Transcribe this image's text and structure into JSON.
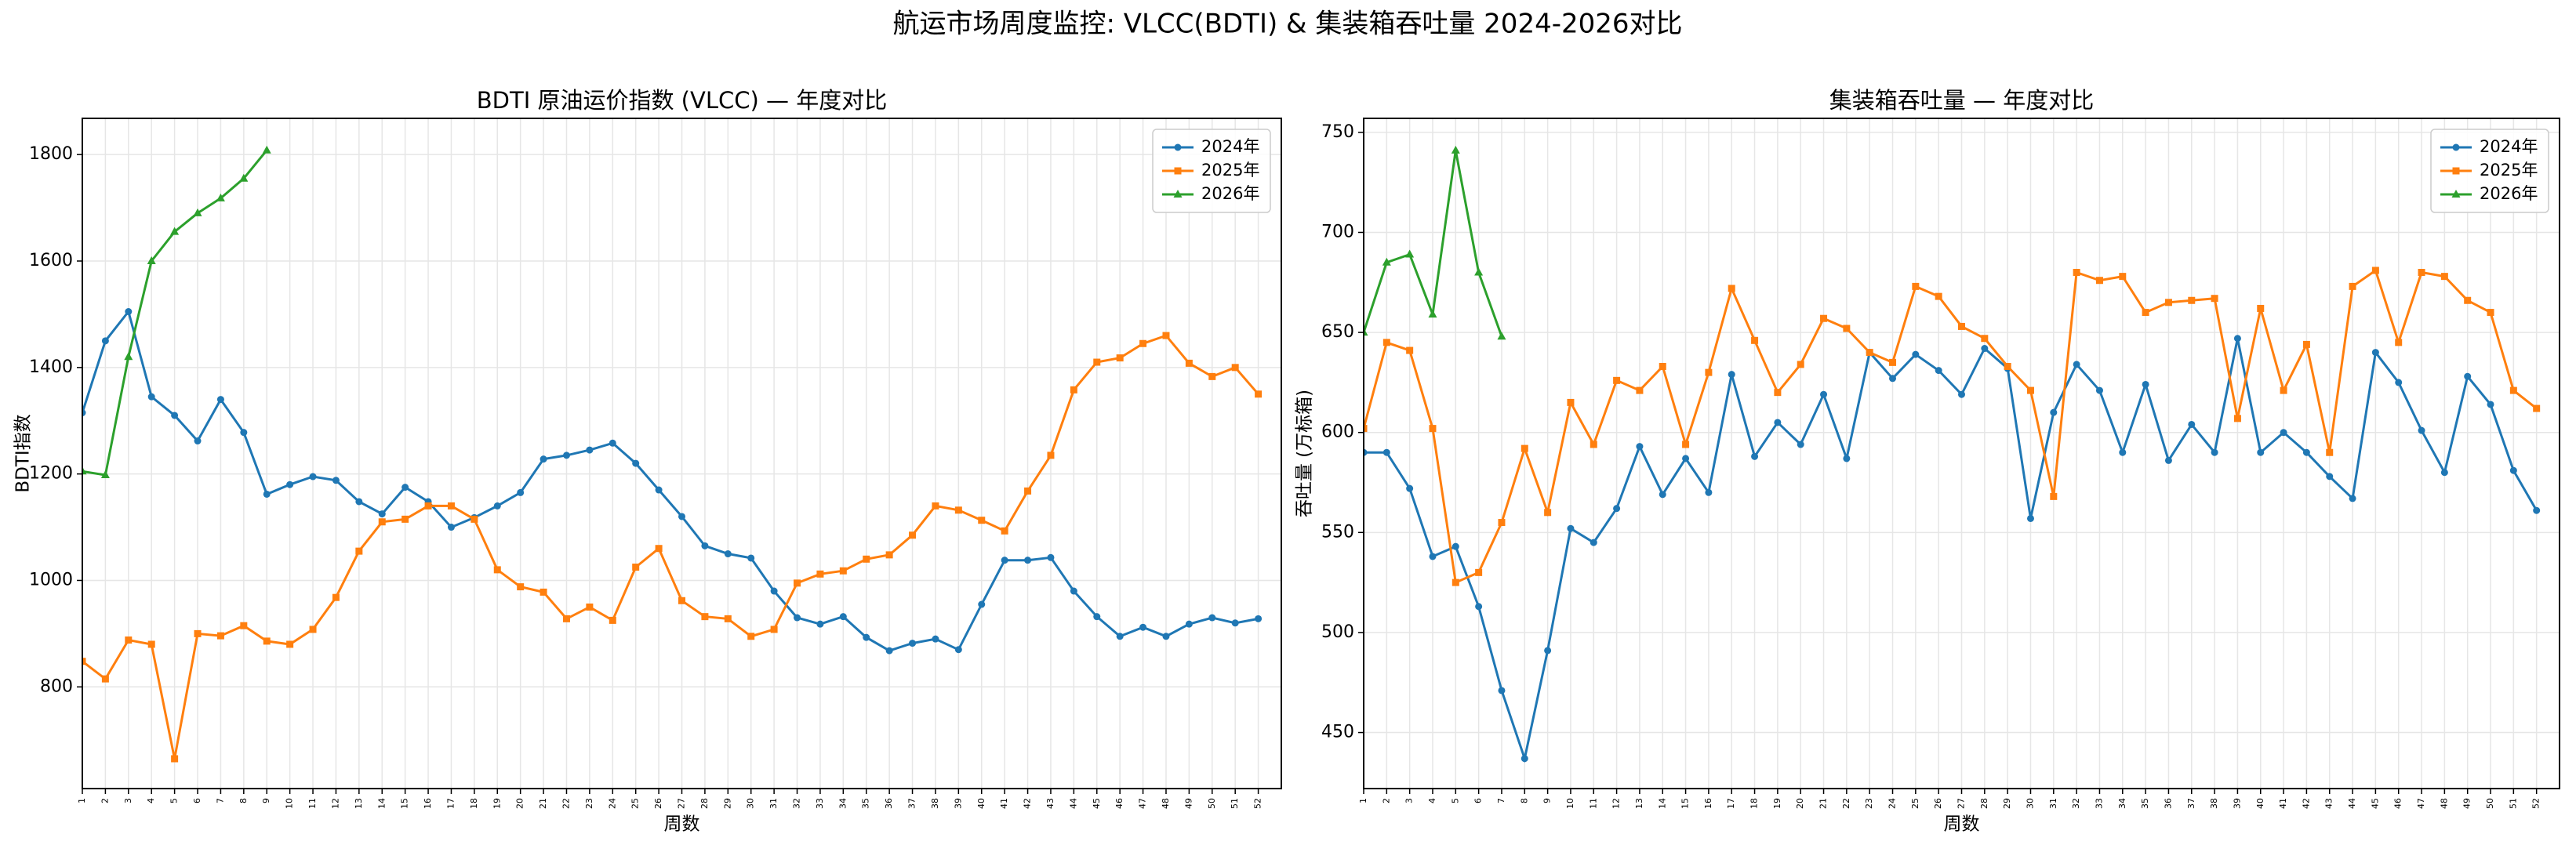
{
  "title": "航运市场周度监控: VLCC(BDTI) & 集装箱吞吐量 2024-2026对比",
  "chart_data": [
    {
      "type": "line",
      "title": "BDTI 原油运价指数 (VLCC) — 年度对比",
      "x_label": "周数",
      "y_label": "BDTI指数",
      "x": [
        1,
        2,
        3,
        4,
        5,
        6,
        7,
        8,
        9,
        10,
        11,
        12,
        13,
        14,
        15,
        16,
        17,
        18,
        19,
        20,
        21,
        22,
        23,
        24,
        25,
        26,
        27,
        28,
        29,
        30,
        31,
        32,
        33,
        34,
        35,
        36,
        37,
        38,
        39,
        40,
        41,
        42,
        43,
        44,
        45,
        46,
        47,
        48,
        49,
        50,
        51,
        52
      ],
      "xlim": [
        1,
        53
      ],
      "xticks": [
        1,
        2,
        3,
        4,
        5,
        6,
        7,
        8,
        9,
        10,
        11,
        12,
        13,
        14,
        15,
        16,
        17,
        18,
        19,
        20,
        21,
        22,
        23,
        24,
        25,
        26,
        27,
        28,
        29,
        30,
        31,
        32,
        33,
        34,
        35,
        36,
        37,
        38,
        39,
        40,
        41,
        42,
        43,
        44,
        45,
        46,
        47,
        48,
        49,
        50,
        51,
        52
      ],
      "ylim": [
        609,
        1868
      ],
      "yticks": [
        800,
        1000,
        1200,
        1400,
        1600,
        1800
      ],
      "grid": true,
      "legend": "upper right",
      "series": [
        {
          "name": "2024年",
          "color": "#1f77b4",
          "marker": "circle",
          "values": [
            1315,
            1450,
            1505,
            1345,
            1310,
            1262,
            1340,
            1278,
            1162,
            1180,
            1195,
            1188,
            1148,
            1125,
            1175,
            1148,
            1100,
            1118,
            1140,
            1165,
            1228,
            1235,
            1245,
            1258,
            1220,
            1170,
            1120,
            1065,
            1050,
            1042,
            980,
            930,
            918,
            932,
            893,
            868,
            882,
            890,
            870,
            955,
            1038,
            1038,
            1043,
            980,
            932,
            895,
            912,
            895,
            918,
            930,
            920,
            928
          ]
        },
        {
          "name": "2025年",
          "color": "#ff7f0e",
          "marker": "square",
          "values": [
            848,
            815,
            888,
            880,
            665,
            900,
            896,
            915,
            886,
            880,
            908,
            968,
            1055,
            1110,
            1115,
            1140,
            1140,
            1115,
            1020,
            988,
            978,
            928,
            950,
            925,
            1025,
            1060,
            962,
            932,
            928,
            895,
            908,
            995,
            1012,
            1018,
            1040,
            1048,
            1085,
            1140,
            1132,
            1113,
            1093,
            1168,
            1235,
            1358,
            1410,
            1418,
            1445,
            1460,
            1408,
            1383,
            1400,
            1350
          ]
        },
        {
          "name": "2026年",
          "color": "#2ca02c",
          "marker": "triangle",
          "values": [
            1205,
            1198,
            1420,
            1600,
            1655,
            1690,
            1718,
            1755,
            1808,
            null,
            null,
            null,
            null,
            null,
            null,
            null,
            null,
            null,
            null,
            null,
            null,
            null,
            null,
            null,
            null,
            null,
            null,
            null,
            null,
            null,
            null,
            null,
            null,
            null,
            null,
            null,
            null,
            null,
            null,
            null,
            null,
            null,
            null,
            null,
            null,
            null,
            null,
            null,
            null,
            null,
            null,
            null
          ]
        }
      ]
    },
    {
      "type": "line",
      "title": "集装箱吞吐量 — 年度对比",
      "x_label": "周数",
      "y_label": "吞吐量 (万标箱)",
      "x": [
        1,
        2,
        3,
        4,
        5,
        6,
        7,
        8,
        9,
        10,
        11,
        12,
        13,
        14,
        15,
        16,
        17,
        18,
        19,
        20,
        21,
        22,
        23,
        24,
        25,
        26,
        27,
        28,
        29,
        30,
        31,
        32,
        33,
        34,
        35,
        36,
        37,
        38,
        39,
        40,
        41,
        42,
        43,
        44,
        45,
        46,
        47,
        48,
        49,
        50,
        51,
        52
      ],
      "xlim": [
        1,
        53
      ],
      "xticks": [
        1,
        2,
        3,
        4,
        5,
        6,
        7,
        8,
        9,
        10,
        11,
        12,
        13,
        14,
        15,
        16,
        17,
        18,
        19,
        20,
        21,
        22,
        23,
        24,
        25,
        26,
        27,
        28,
        29,
        30,
        31,
        32,
        33,
        34,
        35,
        36,
        37,
        38,
        39,
        40,
        41,
        42,
        43,
        44,
        45,
        46,
        47,
        48,
        49,
        50,
        51,
        52
      ],
      "ylim": [
        422,
        757
      ],
      "yticks": [
        450,
        500,
        550,
        600,
        650,
        700,
        750
      ],
      "grid": true,
      "legend": "upper right",
      "series": [
        {
          "name": "2024年",
          "color": "#1f77b4",
          "marker": "circle",
          "values": [
            590,
            590,
            572,
            538,
            543,
            513,
            471,
            437,
            491,
            552,
            545,
            562,
            593,
            569,
            587,
            570,
            629,
            588,
            605,
            594,
            619,
            587,
            640,
            627,
            639,
            631,
            619,
            642,
            632,
            557,
            610,
            634,
            621,
            590,
            624,
            586,
            604,
            590,
            647,
            590,
            600,
            590,
            578,
            567,
            640,
            625,
            601,
            580,
            628,
            614,
            581,
            561
          ]
        },
        {
          "name": "2025年",
          "color": "#ff7f0e",
          "marker": "square",
          "values": [
            602,
            645,
            641,
            602,
            525,
            530,
            555,
            592,
            560,
            615,
            594,
            626,
            621,
            633,
            594,
            630,
            672,
            646,
            620,
            634,
            657,
            652,
            640,
            635,
            673,
            668,
            653,
            647,
            633,
            621,
            568,
            680,
            676,
            678,
            660,
            665,
            666,
            667,
            607,
            662,
            621,
            644,
            590,
            673,
            681,
            645,
            680,
            678,
            666,
            660,
            621,
            612
          ]
        },
        {
          "name": "2026年",
          "color": "#2ca02c",
          "marker": "triangle",
          "values": [
            650,
            685,
            689,
            659,
            741,
            680,
            648,
            null,
            null,
            null,
            null,
            null,
            null,
            null,
            null,
            null,
            null,
            null,
            null,
            null,
            null,
            null,
            null,
            null,
            null,
            null,
            null,
            null,
            null,
            null,
            null,
            null,
            null,
            null,
            null,
            null,
            null,
            null,
            null,
            null,
            null,
            null,
            null,
            null,
            null,
            null,
            null,
            null,
            null,
            null,
            null,
            null
          ]
        }
      ]
    }
  ]
}
